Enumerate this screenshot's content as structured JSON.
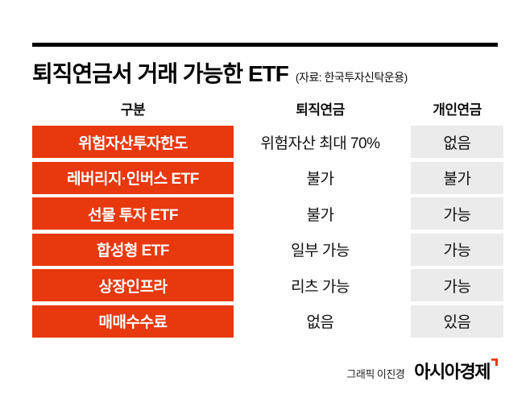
{
  "header": {
    "title": "퇴직연금서 거래 가능한 ETF",
    "source": "(자료: 한국투자신탁운용)"
  },
  "chart_data": {
    "type": "table",
    "title": "퇴직연금서 거래 가능한 ETF",
    "source": "자료: 한국투자신탁운용",
    "columns": [
      "구분",
      "퇴직연금",
      "개인연금"
    ],
    "rows": [
      [
        "위험자산투자한도",
        "위험자산 최대 70%",
        "없음"
      ],
      [
        "레버리지·인버스 ETF",
        "불가",
        "불가"
      ],
      [
        "선물 투자 ETF",
        "불가",
        "가능"
      ],
      [
        "합성형 ETF",
        "일부 가능",
        "가능"
      ],
      [
        "상장인프라",
        "리츠 가능",
        "가능"
      ],
      [
        "매매수수료",
        "없음",
        "있음"
      ]
    ]
  },
  "footer": {
    "credit": "그래픽 이진경",
    "logo": "아시아경제"
  },
  "colors": {
    "accent_red": "#e8380d",
    "cell_gray": "#ebebeb",
    "rule_black": "#000000",
    "text": "#111111"
  }
}
